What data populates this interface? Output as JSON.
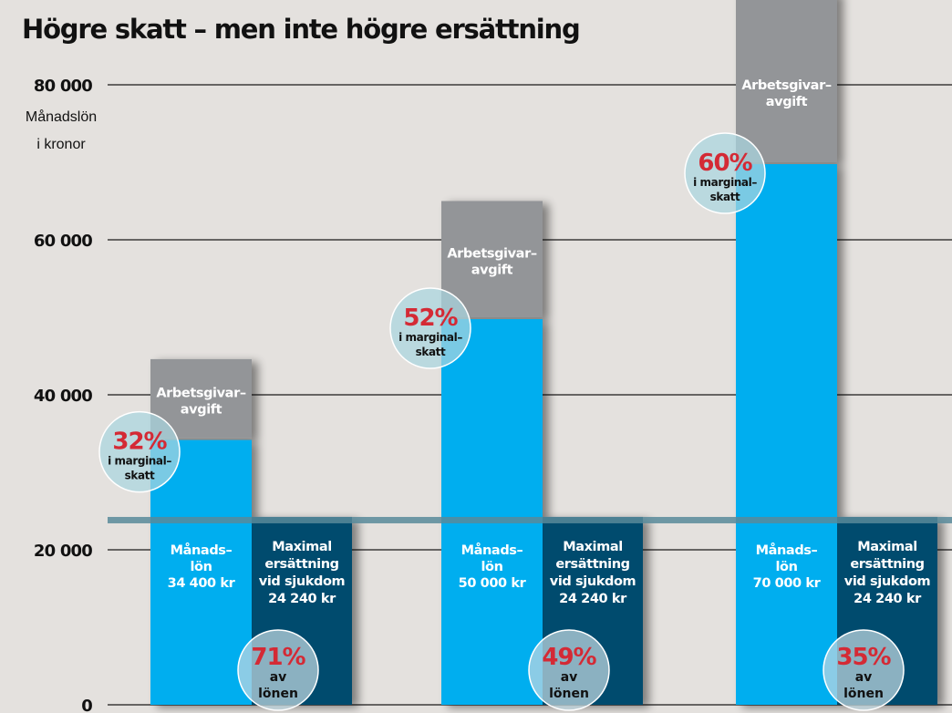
{
  "chart_data": {
    "type": "bar",
    "title": "Högre skatt – men inte högre ersättning",
    "ylabel": "Månadslön i kronor",
    "ylabel_lines": [
      "Månadslön",
      "i kronor"
    ],
    "ylim": [
      0,
      80000
    ],
    "yticks": [
      0,
      20000,
      40000,
      60000,
      80000
    ],
    "ytick_labels": [
      "0",
      "20 000",
      "40 000",
      "60 000",
      "80 000"
    ],
    "grid": true,
    "reference_line": {
      "value": 24240,
      "label": "Maximal ersättning vid sjukdom"
    },
    "colors": {
      "salary": "#00aeef",
      "employer_fee": "#939598",
      "compensation": "#004b6e",
      "reference_line": "#58899a",
      "percent": "#d42a35",
      "bubble": "#a9d6df"
    },
    "groups": [
      {
        "salary": 34400,
        "employer_fee_top": 44600,
        "compensation": 24240,
        "employer_fee_label": [
          "Arbetsgivar–",
          "avgift"
        ],
        "salary_label": [
          "Månads–",
          "lön",
          "34 400 kr"
        ],
        "compensation_label": [
          "Maximal",
          "ersättning",
          "vid sjukdom",
          "24 240 kr"
        ],
        "marginal_tax": {
          "value": "32%",
          "lines": [
            "i marginal–",
            "skatt"
          ]
        },
        "replacement": {
          "value": "71%",
          "lines": [
            "av",
            "lönen"
          ]
        }
      },
      {
        "salary": 50000,
        "employer_fee_top": 65000,
        "compensation": 24240,
        "employer_fee_label": [
          "Arbetsgivar–",
          "avgift"
        ],
        "salary_label": [
          "Månads–",
          "lön",
          "50 000 kr"
        ],
        "compensation_label": [
          "Maximal",
          "ersättning",
          "vid sjukdom",
          "24 240 kr"
        ],
        "marginal_tax": {
          "value": "52%",
          "lines": [
            "i marginal–",
            "skatt"
          ]
        },
        "replacement": {
          "value": "49%",
          "lines": [
            "av",
            "lönen"
          ]
        }
      },
      {
        "salary": 70000,
        "employer_fee_top": 92000,
        "compensation": 24240,
        "employer_fee_label": [
          "Arbetsgivar–",
          "avgift"
        ],
        "salary_label": [
          "Månads–",
          "lön",
          "70 000 kr"
        ],
        "compensation_label": [
          "Maximal",
          "ersättning",
          "vid sjukdom",
          "24 240 kr"
        ],
        "marginal_tax": {
          "value": "60%",
          "lines": [
            "i marginal–",
            "skatt"
          ]
        },
        "replacement": {
          "value": "35%",
          "lines": [
            "av",
            "lönen"
          ]
        }
      }
    ]
  }
}
